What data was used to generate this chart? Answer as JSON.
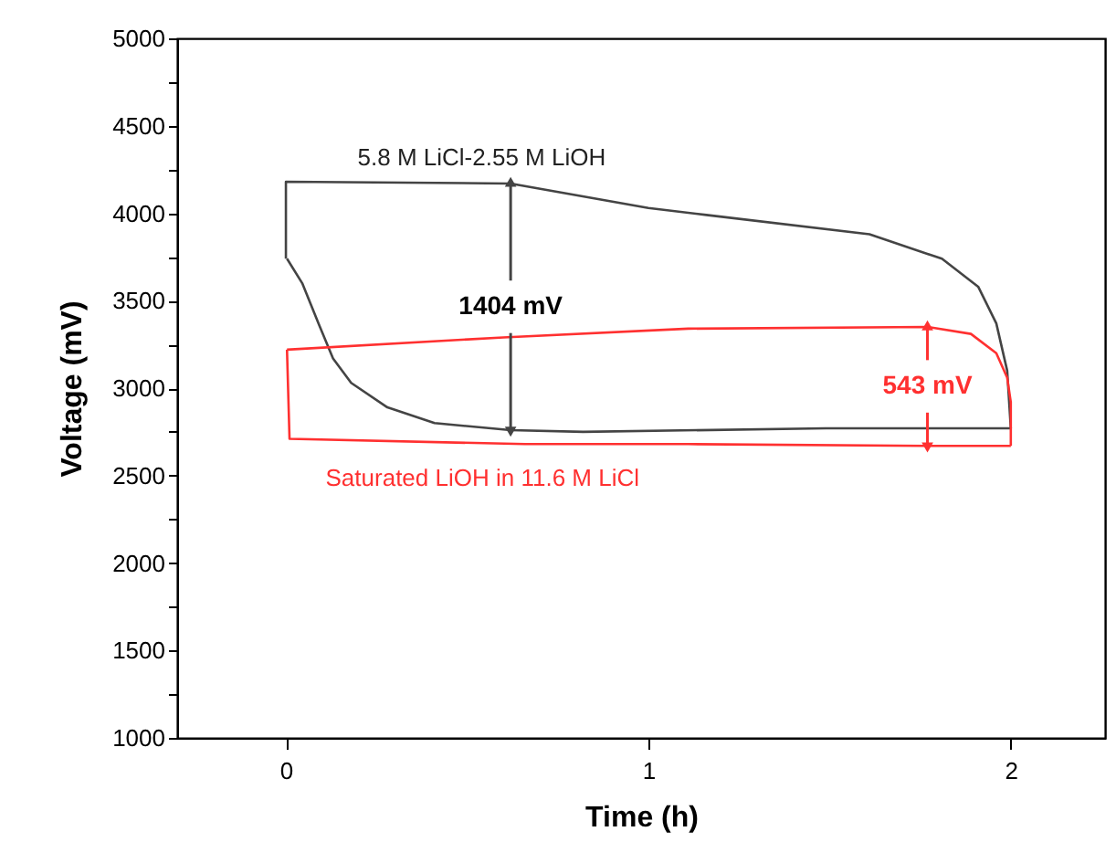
{
  "chart_data": {
    "type": "line",
    "xlabel": "Time (h)",
    "ylabel": "Voltage (mV)",
    "xlim": [
      -0.3,
      2.26
    ],
    "xticks": [
      0,
      1,
      2
    ],
    "ylim": [
      1000,
      5000
    ],
    "yticks": [
      1000,
      {
        "value": 1250,
        "label": null
      },
      1500,
      {
        "value": 1750,
        "label": null
      },
      2000,
      {
        "value": 2250,
        "label": null
      },
      2500,
      {
        "value": 2750,
        "label": null
      },
      3000,
      {
        "value": 3250,
        "label": null
      },
      3500,
      {
        "value": 3750,
        "label": null
      },
      4000,
      {
        "value": 4250,
        "label": null
      },
      4500,
      {
        "value": 4750,
        "label": null
      },
      5000
    ],
    "grid": false,
    "marker": "none",
    "line_style": "solid",
    "series": [
      {
        "name": "5.8 M LiCl-2.55 M LiOH",
        "color": "#444444",
        "x": [
          0,
          0,
          0.62,
          1.0,
          1.16,
          1.61,
          1.81,
          1.91,
          1.96,
          1.99,
          2.0
        ],
        "values": [
          3740,
          4180,
          4170,
          4030,
          3990,
          3880,
          3740,
          3580,
          3370,
          3100,
          2770
        ]
      },
      {
        "color": "#444444",
        "x": [
          0.003,
          0.045,
          0.09,
          0.13,
          0.18,
          0.28,
          0.41,
          0.62,
          0.82,
          1.49,
          2.0
        ],
        "values": [
          3740,
          3600,
          3370,
          3170,
          3030,
          2890,
          2800,
          2760,
          2750,
          2770,
          2770
        ]
      },
      {
        "name": "Saturated LiOH in 11.6 M LiCl",
        "color": "#ff3030",
        "x": [
          0.003,
          0.6,
          1.11,
          1.77,
          1.89,
          1.96,
          1.99,
          2.0,
          2.0
        ],
        "values": [
          3220,
          3290,
          3340,
          3350,
          3310,
          3200,
          3060,
          2920,
          2670
        ]
      },
      {
        "color": "#ff3030",
        "x": [
          0.003,
          0.01,
          0.66,
          1.11,
          1.77,
          2.0
        ],
        "values": [
          3220,
          2710,
          2680,
          2680,
          2670,
          2670
        ]
      }
    ],
    "annotations": [
      {
        "text": "1404 mV",
        "x": 0.62,
        "y": 4170
      },
      {
        "text": "543 mV",
        "x": 1.77,
        "y": 3350
      }
    ]
  }
}
